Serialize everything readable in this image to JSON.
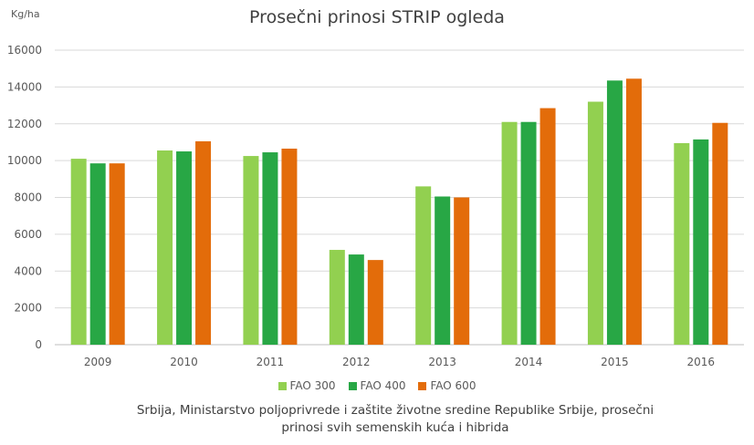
{
  "chart_data": {
    "type": "bar",
    "title": "Prosečni prinosi STRIP ogleda",
    "ylabel": "Kg/ha",
    "xlabel": "",
    "categories": [
      "2009",
      "2010",
      "2011",
      "2012",
      "2013",
      "2014",
      "2015",
      "2016"
    ],
    "series": [
      {
        "name": "FAO 300",
        "color": "#92d050",
        "values": [
          10100,
          10550,
          10250,
          5150,
          8600,
          12100,
          13200,
          10950
        ]
      },
      {
        "name": "FAO 400",
        "color": "#28a745",
        "values": [
          9850,
          10500,
          10450,
          4900,
          8050,
          12100,
          14350,
          11150
        ]
      },
      {
        "name": "FAO 600",
        "color": "#e36c0a",
        "values": [
          9850,
          11050,
          10650,
          4600,
          8000,
          12850,
          14450,
          12050
        ]
      }
    ],
    "ylim": [
      0,
      16000
    ],
    "yticks": [
      0,
      2000,
      4000,
      6000,
      8000,
      10000,
      12000,
      14000,
      16000
    ],
    "grid": true,
    "legend": "bottom"
  },
  "source_line1": "Srbija, Ministarstvo poljoprivrede i zaštite životne sredine Republike Srbije, prosečni",
  "source_line2": "prinosi svih semenskih kuća i hibrida"
}
